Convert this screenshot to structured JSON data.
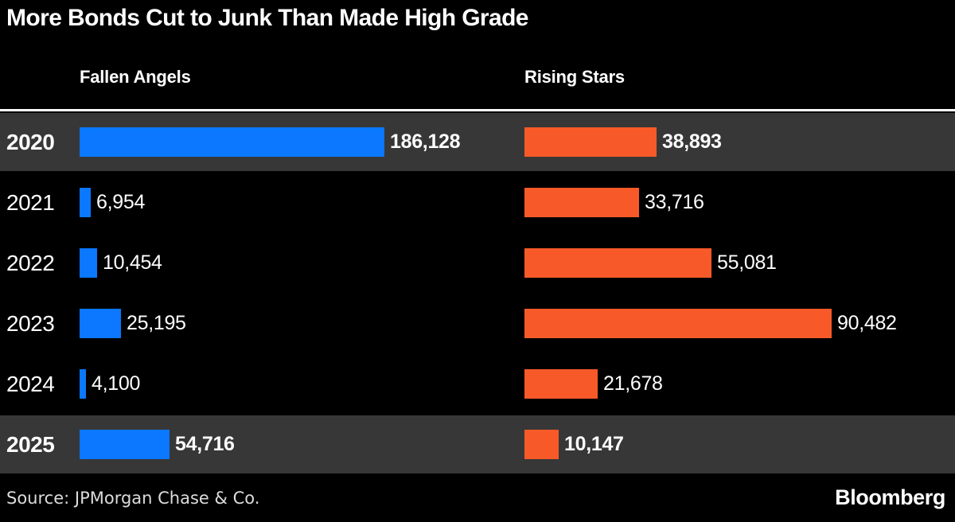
{
  "title": "More Bonds Cut to Junk Than Made High Grade",
  "column_headers": {
    "left": "Fallen Angels",
    "right": "Rising Stars"
  },
  "footer": {
    "source": "Source: JPMorgan Chase & Co.",
    "brand": "Bloomberg"
  },
  "colors": {
    "fallen_angels_bar": "#0b78ff",
    "rising_stars_bar": "#f75a28",
    "highlight_row_bg": "#373737",
    "row_bg": "#000000",
    "background": "#000000"
  },
  "chart_data": {
    "type": "bar",
    "orientation": "horizontal",
    "title": "More Bonds Cut to Junk Than Made High Grade",
    "categories": [
      "2020",
      "2021",
      "2022",
      "2023",
      "2024",
      "2025"
    ],
    "highlighted_categories": [
      "2020",
      "2025"
    ],
    "grid": false,
    "legend_position": "top",
    "series": [
      {
        "name": "Fallen Angels",
        "color": "#0b78ff",
        "xlim": [
          0,
          186128
        ],
        "values": [
          186128,
          6954,
          10454,
          25195,
          4100,
          54716
        ],
        "labels": [
          "186,128",
          "6,954",
          "10,454",
          "25,195",
          "4,100",
          "54,716"
        ]
      },
      {
        "name": "Rising Stars",
        "color": "#f75a28",
        "xlim": [
          0,
          90482
        ],
        "values": [
          38893,
          33716,
          55081,
          90482,
          21678,
          10147
        ],
        "labels": [
          "38,893",
          "33,716",
          "55,081",
          "90,482",
          "21,678",
          "10,147"
        ]
      }
    ]
  }
}
